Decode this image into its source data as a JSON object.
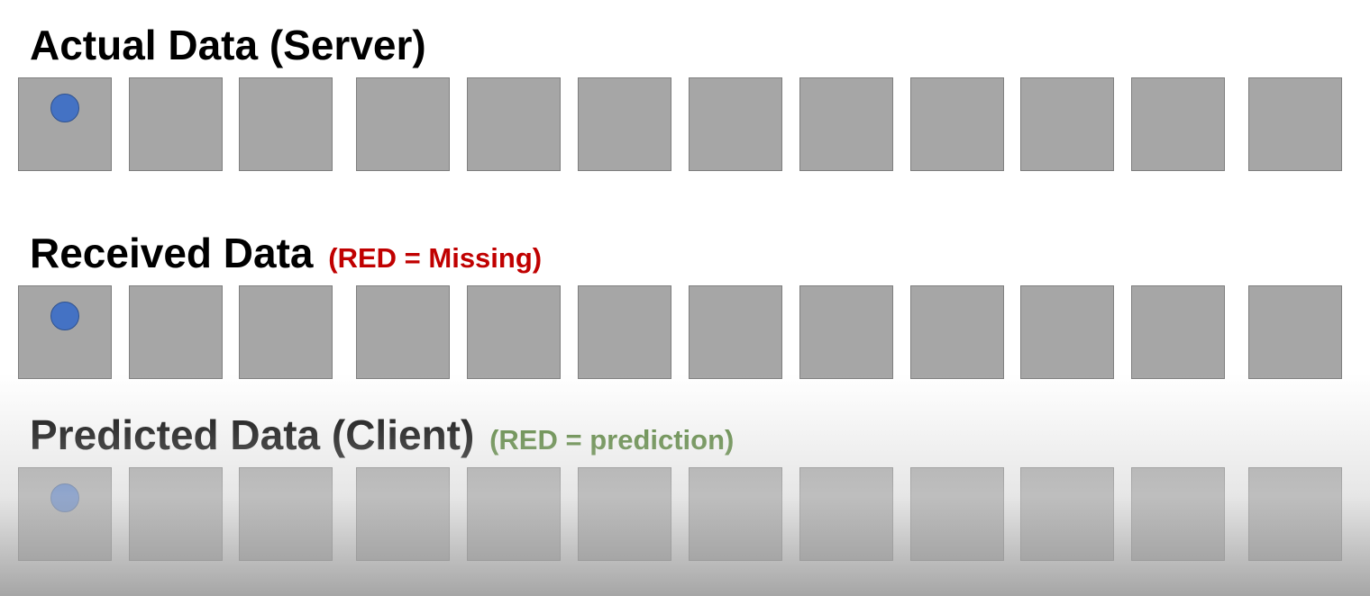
{
  "rows": {
    "actual": {
      "title": "Actual Data (Server)",
      "note": ""
    },
    "received": {
      "title": "Received Data",
      "note": "(RED = Missing)"
    },
    "predicted": {
      "title": "Predicted Data (Client)",
      "note": "(RED = prediction)"
    }
  },
  "cells_per_row": 12,
  "object_position_index": 0,
  "colors": {
    "cell_fill": "#a6a6a6",
    "cell_border": "#7f7f7f",
    "object": "#4472c4",
    "note_missing": "#c00000",
    "note_prediction": "#548235"
  }
}
